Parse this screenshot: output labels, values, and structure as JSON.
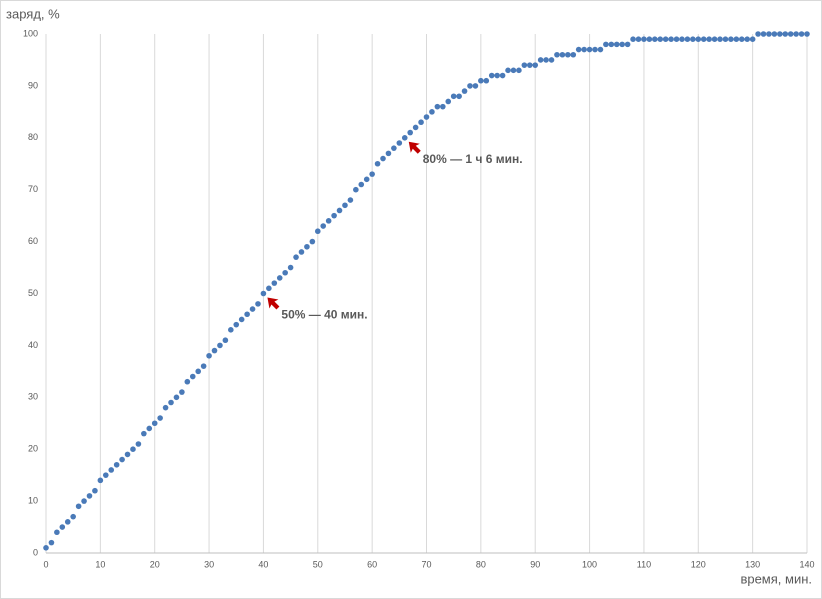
{
  "chart_data": {
    "type": "scatter",
    "y_label": "заряд, %",
    "x_label": "время, мин.",
    "color": "#4a7ab8",
    "x": [
      0,
      1,
      2,
      3,
      4,
      5,
      6,
      7,
      8,
      9,
      10,
      11,
      12,
      13,
      14,
      15,
      16,
      17,
      18,
      19,
      20,
      21,
      22,
      23,
      24,
      25,
      26,
      27,
      28,
      29,
      30,
      31,
      32,
      33,
      34,
      35,
      36,
      37,
      38,
      39,
      40,
      41,
      42,
      43,
      44,
      45,
      46,
      47,
      48,
      49,
      50,
      51,
      52,
      53,
      54,
      55,
      56,
      57,
      58,
      59,
      60,
      61,
      62,
      63,
      64,
      65,
      66,
      67,
      68,
      69,
      70,
      71,
      72,
      73,
      74,
      75,
      76,
      77,
      78,
      79,
      80,
      81,
      82,
      83,
      84,
      85,
      86,
      87,
      88,
      89,
      90,
      91,
      92,
      93,
      94,
      95,
      96,
      97,
      98,
      99,
      100,
      101,
      102,
      103,
      104,
      105,
      106,
      107,
      108,
      109,
      110,
      111,
      112,
      113,
      114,
      115,
      116,
      117,
      118,
      119,
      120,
      121,
      122,
      123,
      124,
      125,
      126,
      127,
      128,
      129,
      130,
      131,
      132,
      133,
      134,
      135,
      136,
      137,
      138,
      139,
      140
    ],
    "values": [
      1,
      2,
      4,
      5,
      6,
      7,
      9,
      10,
      11,
      12,
      14,
      15,
      16,
      17,
      18,
      19,
      20,
      21,
      23,
      24,
      25,
      26,
      28,
      29,
      30,
      31,
      33,
      34,
      35,
      36,
      38,
      39,
      40,
      41,
      43,
      44,
      45,
      46,
      47,
      48,
      50,
      51,
      52,
      53,
      54,
      55,
      57,
      58,
      59,
      60,
      62,
      63,
      64,
      65,
      66,
      67,
      68,
      70,
      71,
      72,
      73,
      75,
      76,
      77,
      78,
      79,
      80,
      81,
      82,
      83,
      84,
      85,
      86,
      86,
      87,
      88,
      88,
      89,
      90,
      90,
      91,
      91,
      92,
      92,
      92,
      93,
      93,
      93,
      94,
      94,
      94,
      95,
      95,
      95,
      96,
      96,
      96,
      96,
      97,
      97,
      97,
      97,
      97,
      98,
      98,
      98,
      98,
      98,
      99,
      99,
      99,
      99,
      99,
      99,
      99,
      99,
      99,
      99,
      99,
      99,
      99,
      99,
      99,
      99,
      99,
      99,
      99,
      99,
      99,
      99,
      99,
      100,
      100,
      100,
      100,
      100,
      100,
      100,
      100,
      100,
      100
    ],
    "xlim": [
      0,
      140
    ],
    "xticks": [
      0,
      10,
      20,
      30,
      40,
      50,
      60,
      70,
      80,
      90,
      100,
      110,
      120,
      130,
      140
    ],
    "ylim": [
      0,
      100
    ],
    "yticks": [
      0,
      10,
      20,
      30,
      40,
      50,
      60,
      70,
      80,
      90,
      100
    ],
    "grid": "x",
    "annotations": [
      {
        "text": "50% — 40 мин.",
        "x": 40,
        "y": 50,
        "color": "#c00000"
      },
      {
        "text": "80% — 1 ч 6 мин.",
        "x": 66,
        "y": 80,
        "color": "#c00000"
      }
    ]
  }
}
